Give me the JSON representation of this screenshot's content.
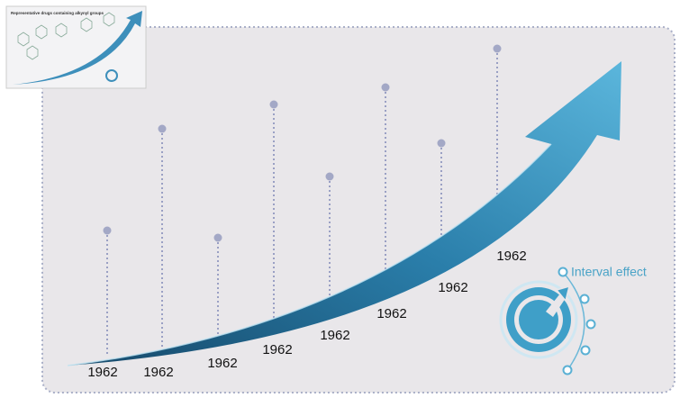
{
  "thumbnail": {
    "title": "Representative drugs containing alkynyl groups"
  },
  "timeline": {
    "labels": [
      "1962",
      "1962",
      "1962",
      "1962",
      "1962",
      "1962",
      "1962",
      "1962"
    ]
  },
  "icon": {
    "label": "Interval effect"
  }
}
